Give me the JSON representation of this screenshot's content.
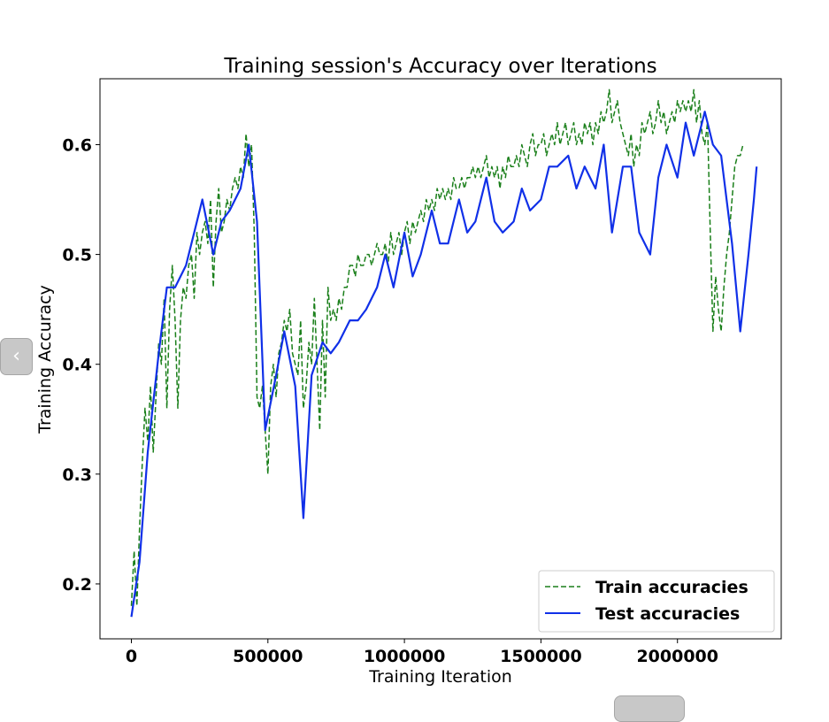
{
  "chart_data": {
    "type": "line",
    "title": "Training session's Accuracy over Iterations",
    "xlabel": "Training Iteration",
    "ylabel": "Training Accuracy",
    "xlim": [
      -115000,
      2380000
    ],
    "ylim": [
      0.15,
      0.66
    ],
    "x_ticks": [
      0,
      500000,
      1000000,
      1500000,
      2000000
    ],
    "x_tick_labels": [
      "0",
      "500000",
      "1000000",
      "1500000",
      "2000000"
    ],
    "y_ticks": [
      0.2,
      0.3,
      0.4,
      0.5,
      0.6
    ],
    "y_tick_labels": [
      "0.2",
      "0.3",
      "0.4",
      "0.5",
      "0.6"
    ],
    "grid": false,
    "legend_position": "lower-right",
    "series": [
      {
        "name": "Train accuracies",
        "style": "dashed",
        "color": "#1a7f1a",
        "points": [
          [
            0,
            0.18
          ],
          [
            10000,
            0.23
          ],
          [
            20000,
            0.18
          ],
          [
            30000,
            0.25
          ],
          [
            40000,
            0.31
          ],
          [
            50000,
            0.36
          ],
          [
            60000,
            0.33
          ],
          [
            70000,
            0.38
          ],
          [
            80000,
            0.32
          ],
          [
            90000,
            0.37
          ],
          [
            100000,
            0.42
          ],
          [
            110000,
            0.4
          ],
          [
            120000,
            0.46
          ],
          [
            130000,
            0.36
          ],
          [
            140000,
            0.45
          ],
          [
            150000,
            0.49
          ],
          [
            160000,
            0.44
          ],
          [
            170000,
            0.36
          ],
          [
            180000,
            0.44
          ],
          [
            190000,
            0.47
          ],
          [
            200000,
            0.46
          ],
          [
            210000,
            0.49
          ],
          [
            220000,
            0.5
          ],
          [
            230000,
            0.46
          ],
          [
            240000,
            0.52
          ],
          [
            250000,
            0.5
          ],
          [
            260000,
            0.52
          ],
          [
            270000,
            0.53
          ],
          [
            280000,
            0.51
          ],
          [
            290000,
            0.55
          ],
          [
            300000,
            0.47
          ],
          [
            310000,
            0.53
          ],
          [
            320000,
            0.56
          ],
          [
            330000,
            0.52
          ],
          [
            340000,
            0.53
          ],
          [
            350000,
            0.55
          ],
          [
            360000,
            0.54
          ],
          [
            370000,
            0.56
          ],
          [
            380000,
            0.57
          ],
          [
            390000,
            0.56
          ],
          [
            400000,
            0.58
          ],
          [
            410000,
            0.57
          ],
          [
            420000,
            0.61
          ],
          [
            430000,
            0.58
          ],
          [
            440000,
            0.6
          ],
          [
            450000,
            0.52
          ],
          [
            460000,
            0.37
          ],
          [
            470000,
            0.36
          ],
          [
            480000,
            0.38
          ],
          [
            490000,
            0.34
          ],
          [
            500000,
            0.3
          ],
          [
            510000,
            0.38
          ],
          [
            520000,
            0.4
          ],
          [
            530000,
            0.37
          ],
          [
            540000,
            0.41
          ],
          [
            550000,
            0.42
          ],
          [
            560000,
            0.44
          ],
          [
            570000,
            0.43
          ],
          [
            580000,
            0.45
          ],
          [
            590000,
            0.41
          ],
          [
            600000,
            0.4
          ],
          [
            610000,
            0.39
          ],
          [
            620000,
            0.44
          ],
          [
            630000,
            0.36
          ],
          [
            640000,
            0.38
          ],
          [
            650000,
            0.42
          ],
          [
            660000,
            0.4
          ],
          [
            670000,
            0.46
          ],
          [
            680000,
            0.4
          ],
          [
            690000,
            0.34
          ],
          [
            700000,
            0.44
          ],
          [
            710000,
            0.37
          ],
          [
            720000,
            0.47
          ],
          [
            730000,
            0.44
          ],
          [
            740000,
            0.45
          ],
          [
            750000,
            0.44
          ],
          [
            760000,
            0.46
          ],
          [
            770000,
            0.45
          ],
          [
            780000,
            0.47
          ],
          [
            790000,
            0.47
          ],
          [
            800000,
            0.49
          ],
          [
            810000,
            0.49
          ],
          [
            820000,
            0.48
          ],
          [
            830000,
            0.5
          ],
          [
            840000,
            0.49
          ],
          [
            850000,
            0.49
          ],
          [
            860000,
            0.5
          ],
          [
            870000,
            0.5
          ],
          [
            880000,
            0.49
          ],
          [
            890000,
            0.5
          ],
          [
            900000,
            0.51
          ],
          [
            910000,
            0.5
          ],
          [
            920000,
            0.5
          ],
          [
            930000,
            0.51
          ],
          [
            940000,
            0.49
          ],
          [
            950000,
            0.52
          ],
          [
            960000,
            0.5
          ],
          [
            970000,
            0.51
          ],
          [
            980000,
            0.52
          ],
          [
            990000,
            0.5
          ],
          [
            1000000,
            0.52
          ],
          [
            1010000,
            0.53
          ],
          [
            1020000,
            0.51
          ],
          [
            1030000,
            0.53
          ],
          [
            1040000,
            0.52
          ],
          [
            1050000,
            0.53
          ],
          [
            1060000,
            0.54
          ],
          [
            1070000,
            0.53
          ],
          [
            1080000,
            0.55
          ],
          [
            1090000,
            0.54
          ],
          [
            1100000,
            0.55
          ],
          [
            1110000,
            0.54
          ],
          [
            1120000,
            0.56
          ],
          [
            1130000,
            0.55
          ],
          [
            1140000,
            0.56
          ],
          [
            1150000,
            0.55
          ],
          [
            1160000,
            0.56
          ],
          [
            1170000,
            0.55
          ],
          [
            1180000,
            0.57
          ],
          [
            1190000,
            0.56
          ],
          [
            1200000,
            0.56
          ],
          [
            1210000,
            0.57
          ],
          [
            1220000,
            0.56
          ],
          [
            1230000,
            0.57
          ],
          [
            1240000,
            0.57
          ],
          [
            1250000,
            0.58
          ],
          [
            1260000,
            0.57
          ],
          [
            1270000,
            0.58
          ],
          [
            1280000,
            0.57
          ],
          [
            1290000,
            0.58
          ],
          [
            1300000,
            0.59
          ],
          [
            1310000,
            0.57
          ],
          [
            1320000,
            0.58
          ],
          [
            1330000,
            0.57
          ],
          [
            1340000,
            0.58
          ],
          [
            1350000,
            0.56
          ],
          [
            1360000,
            0.58
          ],
          [
            1370000,
            0.57
          ],
          [
            1380000,
            0.59
          ],
          [
            1390000,
            0.58
          ],
          [
            1400000,
            0.58
          ],
          [
            1410000,
            0.59
          ],
          [
            1420000,
            0.58
          ],
          [
            1430000,
            0.6
          ],
          [
            1440000,
            0.59
          ],
          [
            1450000,
            0.58
          ],
          [
            1460000,
            0.6
          ],
          [
            1470000,
            0.61
          ],
          [
            1480000,
            0.59
          ],
          [
            1490000,
            0.6
          ],
          [
            1500000,
            0.6
          ],
          [
            1510000,
            0.61
          ],
          [
            1520000,
            0.59
          ],
          [
            1530000,
            0.6
          ],
          [
            1540000,
            0.61
          ],
          [
            1550000,
            0.6
          ],
          [
            1560000,
            0.62
          ],
          [
            1570000,
            0.6
          ],
          [
            1580000,
            0.61
          ],
          [
            1590000,
            0.62
          ],
          [
            1600000,
            0.6
          ],
          [
            1610000,
            0.61
          ],
          [
            1620000,
            0.62
          ],
          [
            1630000,
            0.6
          ],
          [
            1640000,
            0.61
          ],
          [
            1650000,
            0.6
          ],
          [
            1660000,
            0.62
          ],
          [
            1670000,
            0.61
          ],
          [
            1680000,
            0.62
          ],
          [
            1690000,
            0.6
          ],
          [
            1700000,
            0.62
          ],
          [
            1710000,
            0.61
          ],
          [
            1720000,
            0.63
          ],
          [
            1730000,
            0.62
          ],
          [
            1740000,
            0.63
          ],
          [
            1750000,
            0.65
          ],
          [
            1760000,
            0.62
          ],
          [
            1770000,
            0.63
          ],
          [
            1780000,
            0.64
          ],
          [
            1790000,
            0.62
          ],
          [
            1800000,
            0.61
          ],
          [
            1810000,
            0.6
          ],
          [
            1820000,
            0.59
          ],
          [
            1830000,
            0.61
          ],
          [
            1840000,
            0.58
          ],
          [
            1850000,
            0.6
          ],
          [
            1860000,
            0.59
          ],
          [
            1870000,
            0.62
          ],
          [
            1880000,
            0.61
          ],
          [
            1890000,
            0.62
          ],
          [
            1900000,
            0.63
          ],
          [
            1910000,
            0.61
          ],
          [
            1920000,
            0.62
          ],
          [
            1930000,
            0.64
          ],
          [
            1940000,
            0.62
          ],
          [
            1950000,
            0.63
          ],
          [
            1960000,
            0.61
          ],
          [
            1970000,
            0.62
          ],
          [
            1980000,
            0.63
          ],
          [
            1990000,
            0.62
          ],
          [
            2000000,
            0.64
          ],
          [
            2010000,
            0.63
          ],
          [
            2020000,
            0.64
          ],
          [
            2030000,
            0.63
          ],
          [
            2040000,
            0.64
          ],
          [
            2050000,
            0.63
          ],
          [
            2060000,
            0.65
          ],
          [
            2070000,
            0.62
          ],
          [
            2080000,
            0.64
          ],
          [
            2090000,
            0.61
          ],
          [
            2100000,
            0.6
          ],
          [
            2110000,
            0.62
          ],
          [
            2120000,
            0.52
          ],
          [
            2130000,
            0.43
          ],
          [
            2140000,
            0.48
          ],
          [
            2150000,
            0.45
          ],
          [
            2160000,
            0.43
          ],
          [
            2170000,
            0.47
          ],
          [
            2180000,
            0.5
          ],
          [
            2190000,
            0.52
          ],
          [
            2200000,
            0.55
          ],
          [
            2210000,
            0.58
          ],
          [
            2220000,
            0.59
          ],
          [
            2230000,
            0.59
          ],
          [
            2240000,
            0.6
          ]
        ]
      },
      {
        "name": "Test accuracies",
        "style": "solid",
        "color": "#1030e8",
        "points": [
          [
            0,
            0.17
          ],
          [
            30000,
            0.22
          ],
          [
            60000,
            0.32
          ],
          [
            100000,
            0.41
          ],
          [
            130000,
            0.47
          ],
          [
            160000,
            0.47
          ],
          [
            200000,
            0.49
          ],
          [
            230000,
            0.52
          ],
          [
            260000,
            0.55
          ],
          [
            300000,
            0.5
          ],
          [
            330000,
            0.53
          ],
          [
            360000,
            0.54
          ],
          [
            400000,
            0.56
          ],
          [
            430000,
            0.6
          ],
          [
            460000,
            0.53
          ],
          [
            490000,
            0.34
          ],
          [
            530000,
            0.39
          ],
          [
            560000,
            0.43
          ],
          [
            600000,
            0.38
          ],
          [
            630000,
            0.26
          ],
          [
            660000,
            0.39
          ],
          [
            700000,
            0.42
          ],
          [
            730000,
            0.41
          ],
          [
            760000,
            0.42
          ],
          [
            800000,
            0.44
          ],
          [
            830000,
            0.44
          ],
          [
            860000,
            0.45
          ],
          [
            900000,
            0.47
          ],
          [
            930000,
            0.5
          ],
          [
            960000,
            0.47
          ],
          [
            1000000,
            0.52
          ],
          [
            1030000,
            0.48
          ],
          [
            1060000,
            0.5
          ],
          [
            1100000,
            0.54
          ],
          [
            1130000,
            0.51
          ],
          [
            1160000,
            0.51
          ],
          [
            1200000,
            0.55
          ],
          [
            1230000,
            0.52
          ],
          [
            1260000,
            0.53
          ],
          [
            1300000,
            0.57
          ],
          [
            1330000,
            0.53
          ],
          [
            1360000,
            0.52
          ],
          [
            1400000,
            0.53
          ],
          [
            1430000,
            0.56
          ],
          [
            1460000,
            0.54
          ],
          [
            1500000,
            0.55
          ],
          [
            1530000,
            0.58
          ],
          [
            1560000,
            0.58
          ],
          [
            1600000,
            0.59
          ],
          [
            1630000,
            0.56
          ],
          [
            1660000,
            0.58
          ],
          [
            1700000,
            0.56
          ],
          [
            1730000,
            0.6
          ],
          [
            1760000,
            0.52
          ],
          [
            1800000,
            0.58
          ],
          [
            1830000,
            0.58
          ],
          [
            1860000,
            0.52
          ],
          [
            1900000,
            0.5
          ],
          [
            1930000,
            0.57
          ],
          [
            1960000,
            0.6
          ],
          [
            2000000,
            0.57
          ],
          [
            2030000,
            0.62
          ],
          [
            2060000,
            0.59
          ],
          [
            2100000,
            0.63
          ],
          [
            2130000,
            0.6
          ],
          [
            2160000,
            0.59
          ],
          [
            2200000,
            0.51
          ],
          [
            2230000,
            0.43
          ],
          [
            2260000,
            0.5
          ],
          [
            2280000,
            0.55
          ],
          [
            2290000,
            0.58
          ]
        ]
      }
    ]
  },
  "nav": {
    "prev_glyph": "‹"
  }
}
